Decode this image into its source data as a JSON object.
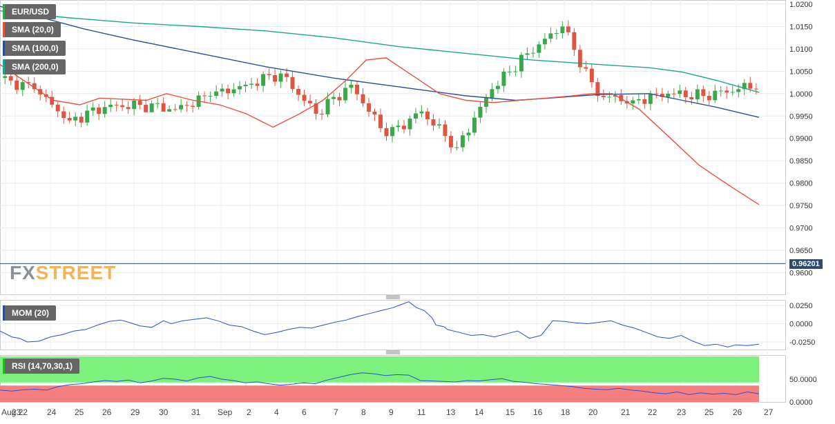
{
  "chart_data": {
    "type": "candlestick",
    "symbol": "EUR/USD",
    "overlays": [
      {
        "name": "SMA (20,0)",
        "color": "#e8503f"
      },
      {
        "name": "SMA (100,0)",
        "color": "#2a4d9c"
      },
      {
        "name": "SMA (200,0)",
        "color": "#1aa68c"
      }
    ],
    "current_price": "0.96201",
    "price_ylim": [
      0.9575,
      1.0205
    ],
    "price_ticks": [
      "1.0200",
      "1.0150",
      "1.0100",
      "1.0050",
      "1.0000",
      "0.9950",
      "0.9900",
      "0.9850",
      "0.9800",
      "0.9750",
      "0.9700",
      "0.9650",
      "0.9600"
    ],
    "x_ticks": [
      "Aug 22",
      "23",
      "24",
      "25",
      "26",
      "29",
      "30",
      "31",
      "Sep",
      "2",
      "4",
      "6",
      "7",
      "8",
      "9",
      "11",
      "13",
      "14",
      "15",
      "16",
      "18",
      "20",
      "21",
      "22",
      "23",
      "25",
      "26",
      "27"
    ],
    "bars_per_day": 6,
    "bar_count": 129,
    "daily_ohlc": [
      [
        1.0035,
        1.005,
        0.999,
        1.001
      ],
      [
        1.001,
        1.003,
        0.9905,
        0.994
      ],
      [
        0.994,
        1.0015,
        0.9925,
        0.997
      ],
      [
        0.997,
        1.003,
        0.995,
        0.9975
      ],
      [
        0.9975,
        1.009,
        0.996,
        0.9965
      ],
      [
        0.9965,
        1.0005,
        0.9915,
        0.9995
      ],
      [
        0.9995,
        1.0055,
        0.9985,
        1.002
      ],
      [
        1.002,
        1.0075,
        0.999,
        1.0045
      ],
      [
        1.0045,
        1.006,
        0.991,
        0.9955
      ],
      [
        0.9955,
        1.0035,
        0.993,
        1.002
      ],
      [
        1.002,
        1.003,
        0.988,
        0.9905
      ],
      [
        0.9905,
        0.998,
        0.989,
        0.996
      ],
      [
        0.996,
        0.9975,
        0.9865,
        0.988
      ],
      [
        0.988,
        1.003,
        0.987,
        1.001
      ],
      [
        1.001,
        1.011,
        1.0,
        1.009
      ],
      [
        1.009,
        1.02,
        1.008,
        1.015
      ],
      [
        1.015,
        1.0185,
        0.998,
        0.9995
      ],
      [
        0.9995,
        1.001,
        0.996,
        0.9985
      ],
      [
        0.9985,
        1.002,
        0.996,
        1.0
      ],
      [
        1.0,
        1.002,
        0.995,
        0.9995
      ],
      [
        0.9995,
        1.004,
        0.9975,
        1.001
      ],
      [
        1.001,
        1.005,
        0.997,
        1.003
      ],
      [
        1.003,
        1.004,
        0.99,
        0.991
      ],
      [
        0.991,
        0.994,
        0.981,
        0.983
      ],
      [
        0.983,
        0.9905,
        0.98,
        0.985
      ],
      [
        0.985,
        0.986,
        0.968,
        0.969
      ],
      [
        0.969,
        0.97,
        0.957,
        0.962
      ]
    ],
    "sma20": [
      [
        0,
        1.0065
      ],
      [
        8,
        1.0025
      ],
      [
        16,
        0.9985
      ],
      [
        24,
        0.9975
      ],
      [
        30,
        0.999
      ],
      [
        44,
        0.9985
      ],
      [
        50,
        1.0
      ],
      [
        58,
        0.9985
      ],
      [
        66,
        0.9975
      ],
      [
        74,
        0.9955
      ],
      [
        82,
        0.9925
      ],
      [
        90,
        0.9955
      ],
      [
        97,
        0.9985
      ],
      [
        104,
        1.003
      ],
      [
        110,
        1.0075
      ],
      [
        116,
        1.008
      ],
      [
        120,
        1.006
      ],
      [
        126,
        1.003
      ],
      [
        132,
        1.0
      ],
      [
        140,
        0.9985
      ],
      [
        148,
        0.998
      ],
      [
        156,
        0.9985
      ],
      [
        164,
        0.999
      ],
      [
        172,
        0.9995
      ],
      [
        178,
        1.0
      ],
      [
        184,
        1.0
      ],
      [
        192,
        0.9965
      ],
      [
        200,
        0.991
      ],
      [
        210,
        0.984
      ],
      [
        220,
        0.979
      ],
      [
        228,
        0.9752
      ]
    ],
    "sma100": [
      [
        0,
        1.0195
      ],
      [
        10,
        1.0175
      ],
      [
        25,
        1.0145
      ],
      [
        40,
        1.012
      ],
      [
        60,
        1.009
      ],
      [
        80,
        1.006
      ],
      [
        100,
        1.0035
      ],
      [
        120,
        1.0015
      ],
      [
        130,
        1.0005
      ],
      [
        140,
        0.9995
      ],
      [
        155,
        0.9985
      ],
      [
        165,
        0.999
      ],
      [
        180,
        0.9998
      ],
      [
        195,
        1.0
      ],
      [
        205,
        0.9985
      ],
      [
        215,
        0.997
      ],
      [
        228,
        0.9947
      ]
    ],
    "sma200": [
      [
        0,
        1.0185
      ],
      [
        20,
        1.017
      ],
      [
        40,
        1.0158
      ],
      [
        60,
        1.015
      ],
      [
        80,
        1.014
      ],
      [
        100,
        1.0125
      ],
      [
        120,
        1.0105
      ],
      [
        140,
        1.009
      ],
      [
        160,
        1.0075
      ],
      [
        180,
        1.0065
      ],
      [
        195,
        1.0058
      ],
      [
        205,
        1.0048
      ],
      [
        215,
        1.003
      ],
      [
        228,
        1.0003
      ]
    ],
    "mom": {
      "name": "MOM (20)",
      "ylim": [
        -0.035,
        0.03
      ],
      "ticks": [
        "0.0250",
        "0.0000",
        "-0.0250"
      ],
      "points": [
        [
          0,
          -0.01
        ],
        [
          6,
          -0.018
        ],
        [
          10,
          -0.02
        ],
        [
          14,
          -0.025
        ],
        [
          20,
          -0.024
        ],
        [
          26,
          -0.018
        ],
        [
          32,
          -0.015
        ],
        [
          38,
          -0.01
        ],
        [
          44,
          -0.008
        ],
        [
          50,
          -0.002
        ],
        [
          56,
          0.003
        ],
        [
          62,
          0.005
        ],
        [
          66,
          0.002
        ],
        [
          72,
          -0.003
        ],
        [
          78,
          -0.005
        ],
        [
          84,
          0.004
        ],
        [
          88,
          0.0
        ],
        [
          94,
          0.004
        ],
        [
          100,
          0.006
        ],
        [
          106,
          0.008
        ],
        [
          112,
          0.004
        ],
        [
          118,
          -0.002
        ],
        [
          124,
          -0.004
        ],
        [
          130,
          -0.01
        ],
        [
          136,
          -0.015
        ],
        [
          142,
          -0.012
        ],
        [
          148,
          -0.008
        ],
        [
          154,
          -0.005
        ],
        [
          160,
          -0.006
        ],
        [
          166,
          -0.002
        ],
        [
          172,
          0.002
        ],
        [
          178,
          0.005
        ],
        [
          184,
          0.01
        ],
        [
          190,
          0.014
        ],
        [
          196,
          0.018
        ],
        [
          202,
          0.022
        ],
        [
          206,
          0.026
        ],
        [
          210,
          0.03
        ],
        [
          214,
          0.022
        ],
        [
          218,
          0.018
        ],
        [
          222,
          0.008
        ],
        [
          224,
          -0.002
        ],
        [
          228,
          -0.004
        ],
        [
          230,
          -0.008
        ],
        [
          236,
          -0.012
        ],
        [
          242,
          -0.016
        ],
        [
          248,
          -0.015
        ],
        [
          254,
          -0.018
        ],
        [
          260,
          -0.014
        ],
        [
          266,
          -0.01
        ],
        [
          272,
          -0.02
        ],
        [
          278,
          -0.016
        ],
        [
          284,
          0.004
        ],
        [
          290,
          0.003
        ],
        [
          296,
          0.001
        ],
        [
          302,
          0.0
        ],
        [
          308,
          0.002
        ],
        [
          314,
          0.004
        ],
        [
          320,
          -0.002
        ],
        [
          326,
          -0.006
        ],
        [
          332,
          -0.012
        ],
        [
          338,
          -0.018
        ],
        [
          344,
          -0.02
        ],
        [
          350,
          -0.016
        ],
        [
          356,
          -0.024
        ],
        [
          362,
          -0.03
        ],
        [
          368,
          -0.028
        ],
        [
          374,
          -0.032
        ],
        [
          378,
          -0.029
        ],
        [
          384,
          -0.03
        ],
        [
          390,
          -0.028
        ]
      ]
    },
    "rsi": {
      "name": "RSI (14,70,30,1)",
      "ylim": [
        0,
        100
      ],
      "ticks": [
        "50.0000",
        "0.0000"
      ],
      "overbought": 70,
      "oversold": 30,
      "points": [
        [
          0,
          26
        ],
        [
          6,
          24
        ],
        [
          12,
          27
        ],
        [
          18,
          28
        ],
        [
          24,
          26
        ],
        [
          30,
          34
        ],
        [
          36,
          38
        ],
        [
          42,
          40
        ],
        [
          48,
          44
        ],
        [
          54,
          47
        ],
        [
          60,
          45
        ],
        [
          66,
          48
        ],
        [
          72,
          42
        ],
        [
          78,
          46
        ],
        [
          84,
          52
        ],
        [
          90,
          50
        ],
        [
          96,
          46
        ],
        [
          102,
          53
        ],
        [
          108,
          56
        ],
        [
          114,
          50
        ],
        [
          120,
          47
        ],
        [
          126,
          42
        ],
        [
          132,
          44
        ],
        [
          138,
          40
        ],
        [
          144,
          37
        ],
        [
          150,
          39
        ],
        [
          156,
          42
        ],
        [
          162,
          40
        ],
        [
          168,
          48
        ],
        [
          174,
          54
        ],
        [
          180,
          60
        ],
        [
          186,
          64
        ],
        [
          192,
          62
        ],
        [
          198,
          58
        ],
        [
          204,
          60
        ],
        [
          210,
          59
        ],
        [
          216,
          47
        ],
        [
          222,
          46
        ],
        [
          228,
          45
        ],
        [
          234,
          44
        ],
        [
          240,
          47
        ],
        [
          246,
          46
        ],
        [
          252,
          49
        ],
        [
          258,
          51
        ],
        [
          264,
          45
        ],
        [
          270,
          43
        ],
        [
          276,
          40
        ],
        [
          282,
          38
        ],
        [
          288,
          36
        ],
        [
          294,
          34
        ],
        [
          300,
          30
        ],
        [
          306,
          28
        ],
        [
          312,
          27
        ],
        [
          318,
          30
        ],
        [
          324,
          26
        ],
        [
          330,
          24
        ],
        [
          336,
          20
        ],
        [
          342,
          18
        ],
        [
          348,
          22
        ],
        [
          354,
          16
        ],
        [
          360,
          20
        ],
        [
          366,
          17
        ],
        [
          372,
          19
        ],
        [
          378,
          16
        ],
        [
          384,
          22
        ],
        [
          390,
          18
        ]
      ]
    }
  }
}
